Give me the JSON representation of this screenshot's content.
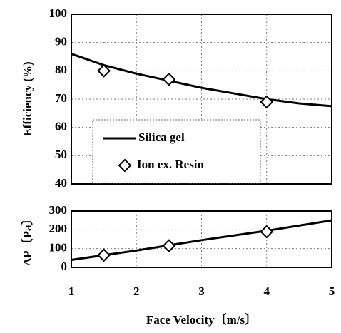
{
  "chart_data": [
    {
      "type": "line",
      "ylabel": "Efficiency (%)",
      "xlim": [
        1,
        5
      ],
      "xticks": [
        1,
        2,
        3,
        4,
        5
      ],
      "ylim": [
        40,
        100
      ],
      "yticks": [
        40,
        50,
        60,
        70,
        80,
        90,
        100
      ],
      "grid": true,
      "legend": "lower left",
      "series": [
        {
          "name": "Silica gel",
          "color": "#000000",
          "style": "line",
          "x": [
            1,
            1.5,
            2,
            2.5,
            3,
            3.5,
            4,
            4.5,
            5
          ],
          "values": [
            86,
            82,
            79,
            76.5,
            74,
            72,
            70,
            68.5,
            67.5
          ]
        },
        {
          "name": "Ion ex. Resin",
          "color": "#000000",
          "style": "marker",
          "x": [
            1.5,
            2.5,
            4
          ],
          "values": [
            80,
            77,
            69
          ]
        }
      ]
    },
    {
      "type": "line",
      "xlabel": "Face Velocity〔m/s〕",
      "ylabel": "ΔP〔Pa〕",
      "xlim": [
        1,
        5
      ],
      "xticks": [
        1,
        2,
        3,
        4,
        5
      ],
      "ylim": [
        0,
        300
      ],
      "yticks": [
        0,
        100,
        200,
        300
      ],
      "grid": true,
      "series": [
        {
          "color": "#000000",
          "style": "line",
          "x": [
            1,
            2,
            3,
            4,
            5
          ],
          "values": [
            40,
            90,
            145,
            195,
            250
          ]
        },
        {
          "color": "#000000",
          "style": "marker",
          "x": [
            1.5,
            2.5,
            4
          ],
          "values": [
            65,
            115,
            190
          ]
        }
      ]
    }
  ]
}
